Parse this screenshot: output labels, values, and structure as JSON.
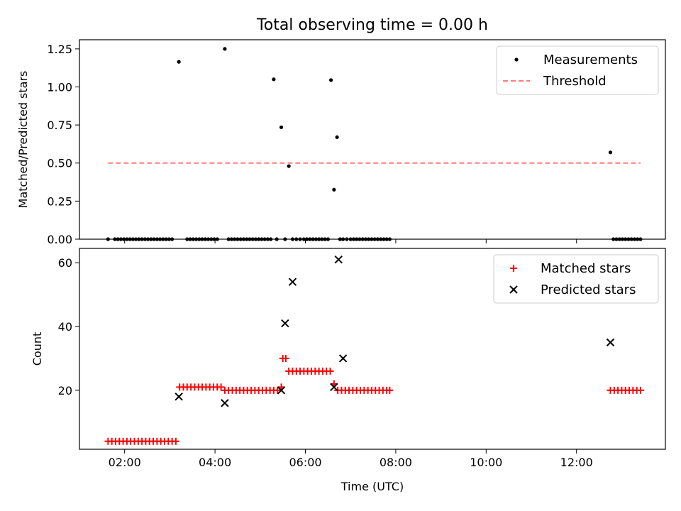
{
  "chart_data": [
    {
      "type": "scatter",
      "title": "Total observing time = 0.00 h",
      "xlabel": "",
      "ylabel": "Matched/Predicted stars",
      "xlim": [
        "01:00",
        "13:58"
      ],
      "ylim": [
        0,
        1.31
      ],
      "yticks": [
        "0.00",
        "0.25",
        "0.50",
        "0.75",
        "1.00",
        "1.25"
      ],
      "xticks": [
        "02:00",
        "04:00",
        "06:00",
        "08:00",
        "10:00",
        "12:00"
      ],
      "legend": "top-right",
      "series": [
        {
          "name": "Measurements",
          "color": "#000000",
          "marker": "dot",
          "x": [
            "01:38",
            "01:47",
            "01:51",
            "01:55",
            "01:59",
            "02:03",
            "02:07",
            "02:11",
            "02:15",
            "02:19",
            "02:23",
            "02:27",
            "02:31",
            "02:35",
            "02:39",
            "02:43",
            "02:47",
            "02:51",
            "02:55",
            "02:59",
            "03:03",
            "03:12",
            "03:23",
            "03:27",
            "03:31",
            "03:35",
            "03:39",
            "03:43",
            "03:47",
            "03:51",
            "03:55",
            "03:59",
            "04:03",
            "04:13",
            "04:18",
            "04:22",
            "04:26",
            "04:30",
            "04:34",
            "04:38",
            "04:42",
            "04:46",
            "04:50",
            "04:54",
            "04:58",
            "05:02",
            "05:06",
            "05:10",
            "05:14",
            "05:18",
            "05:22",
            "05:28",
            "05:33",
            "05:38",
            "05:43",
            "05:48",
            "05:53",
            "05:58",
            "06:02",
            "06:06",
            "06:10",
            "06:14",
            "06:18",
            "06:22",
            "06:26",
            "06:30",
            "06:34",
            "06:38",
            "06:42",
            "06:46",
            "06:50",
            "06:55",
            "07:00",
            "07:04",
            "07:08",
            "07:12",
            "07:16",
            "07:20",
            "07:24",
            "07:28",
            "07:32",
            "07:36",
            "07:40",
            "07:44",
            "07:48",
            "07:52",
            "12:45",
            "12:49",
            "12:53",
            "12:57",
            "13:01",
            "13:05",
            "13:09",
            "13:13",
            "13:17",
            "13:21",
            "13:25"
          ],
          "y": [
            0,
            0,
            0,
            0,
            0,
            0,
            0,
            0,
            0,
            0,
            0,
            0,
            0,
            0,
            0,
            0,
            0,
            0,
            0,
            0,
            0,
            1.165,
            0,
            0,
            0,
            0,
            0,
            0,
            0,
            0,
            0,
            0,
            0,
            1.25,
            0,
            0,
            0,
            0,
            0,
            0,
            0,
            0,
            0,
            0,
            0,
            0,
            0,
            0,
            0,
            1.05,
            0,
            0.735,
            0,
            0.48,
            0,
            0,
            0,
            0,
            0,
            0,
            0,
            0,
            0,
            0,
            0,
            0,
            1.045,
            0.325,
            0.67,
            0,
            0,
            0,
            0,
            0,
            0,
            0,
            0,
            0,
            0,
            0,
            0,
            0,
            0,
            0,
            0,
            0,
            0.57,
            0,
            0,
            0,
            0,
            0,
            0,
            0,
            0,
            0,
            0
          ]
        },
        {
          "name": "Threshold",
          "color": "#ff7a7a",
          "style": "dashed",
          "x": [
            "01:38",
            "13:25"
          ],
          "y": [
            0.5,
            0.5
          ]
        }
      ]
    },
    {
      "type": "scatter",
      "title": "",
      "xlabel": "Time (UTC)",
      "ylabel": "Count",
      "xlim": [
        "01:00",
        "13:58"
      ],
      "ylim": [
        1.5,
        64.5
      ],
      "yticks": [
        "20",
        "40",
        "60"
      ],
      "xticks": [
        "02:00",
        "04:00",
        "06:00",
        "08:00",
        "10:00",
        "12:00"
      ],
      "legend": "top-right",
      "series": [
        {
          "name": "Matched stars",
          "color": "#ff0000",
          "marker": "plus",
          "x": [
            "01:38",
            "01:43",
            "01:48",
            "01:53",
            "01:58",
            "02:03",
            "02:08",
            "02:13",
            "02:18",
            "02:23",
            "02:28",
            "02:33",
            "02:38",
            "02:43",
            "02:48",
            "02:53",
            "02:58",
            "03:03",
            "03:08",
            "03:13",
            "03:18",
            "03:23",
            "03:28",
            "03:33",
            "03:38",
            "03:43",
            "03:48",
            "03:53",
            "03:58",
            "04:03",
            "04:08",
            "04:13",
            "04:18",
            "04:23",
            "04:28",
            "04:33",
            "04:38",
            "04:43",
            "04:48",
            "04:53",
            "04:58",
            "05:03",
            "05:08",
            "05:13",
            "05:18",
            "05:23",
            "05:28",
            "05:30",
            "05:34",
            "05:38",
            "05:43",
            "05:48",
            "05:53",
            "05:58",
            "06:03",
            "06:08",
            "06:13",
            "06:18",
            "06:23",
            "06:28",
            "06:33",
            "06:38",
            "06:43",
            "06:48",
            "06:53",
            "06:58",
            "07:03",
            "07:08",
            "07:13",
            "07:18",
            "07:23",
            "07:28",
            "07:33",
            "07:38",
            "07:43",
            "07:48",
            "07:52",
            "12:45",
            "12:50",
            "12:55",
            "13:00",
            "13:05",
            "13:10",
            "13:15",
            "13:20",
            "13:25"
          ],
          "y": [
            4,
            4,
            4,
            4,
            4,
            4,
            4,
            4,
            4,
            4,
            4,
            4,
            4,
            4,
            4,
            4,
            4,
            4,
            4,
            21,
            21,
            21,
            21,
            21,
            21,
            21,
            21,
            21,
            21,
            21,
            21,
            20,
            20,
            20,
            20,
            20,
            20,
            20,
            20,
            20,
            20,
            20,
            20,
            20,
            20,
            20,
            21,
            30,
            30,
            26,
            26,
            26,
            26,
            26,
            26,
            26,
            26,
            26,
            26,
            26,
            26,
            22,
            20,
            20,
            20,
            20,
            20,
            20,
            20,
            20,
            20,
            20,
            20,
            20,
            20,
            20,
            20,
            20,
            20,
            20,
            20,
            20,
            20,
            20,
            20,
            20
          ]
        },
        {
          "name": "Predicted stars",
          "color": "#000000",
          "marker": "x",
          "x": [
            "03:12",
            "04:13",
            "05:28",
            "05:33",
            "05:43",
            "06:38",
            "06:44",
            "06:50",
            "12:45"
          ],
          "y": [
            18,
            16,
            20,
            41,
            54,
            21,
            61,
            30,
            35
          ]
        }
      ]
    }
  ]
}
